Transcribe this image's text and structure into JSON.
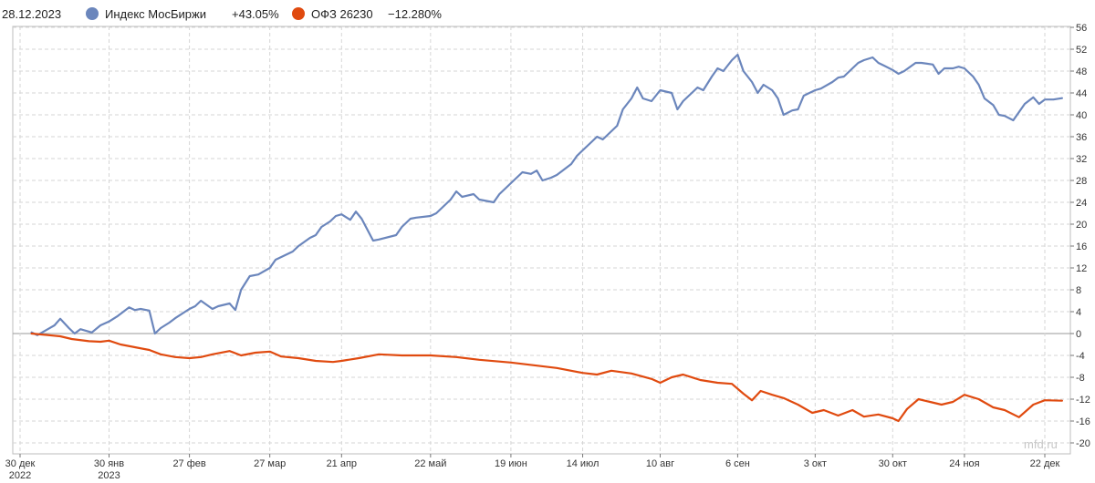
{
  "legend": {
    "date": "28.12.2023",
    "items": [
      {
        "name": "Индекс МосБиржи",
        "value": "+43.05%",
        "color": "#6b86bc"
      },
      {
        "name": "ОФЗ 26230",
        "value": "−12.280%",
        "color": "#e04a0f"
      }
    ]
  },
  "watermark": "mfd.ru",
  "chart_data": {
    "type": "line",
    "x_ticks": [
      {
        "date": "2022-12-30",
        "label": [
          "30 дек",
          "2022"
        ]
      },
      {
        "date": "2023-01-30",
        "label": [
          "30 янв",
          "2023"
        ]
      },
      {
        "date": "2023-02-27",
        "label": [
          "27 фев"
        ]
      },
      {
        "date": "2023-03-27",
        "label": [
          "27 мар"
        ]
      },
      {
        "date": "2023-04-21",
        "label": [
          "21 апр"
        ]
      },
      {
        "date": "2023-05-22",
        "label": [
          "22 май"
        ]
      },
      {
        "date": "2023-06-19",
        "label": [
          "19 июн"
        ]
      },
      {
        "date": "2023-07-14",
        "label": [
          "14 июл"
        ]
      },
      {
        "date": "2023-08-10",
        "label": [
          "10 авг"
        ]
      },
      {
        "date": "2023-09-06",
        "label": [
          "6 сен"
        ]
      },
      {
        "date": "2023-10-03",
        "label": [
          "3 окт"
        ]
      },
      {
        "date": "2023-10-30",
        "label": [
          "30 окт"
        ]
      },
      {
        "date": "2023-11-24",
        "label": [
          "24 ноя"
        ]
      },
      {
        "date": "2023-12-22",
        "label": [
          "22 дек"
        ]
      }
    ],
    "y_ticks": [
      56,
      52,
      48,
      44,
      40,
      36,
      32,
      28,
      24,
      20,
      16,
      12,
      8,
      4,
      0,
      -4,
      -8,
      -12,
      -16,
      -20
    ],
    "ylim": [
      -22,
      58
    ],
    "grid": true,
    "series": [
      {
        "name": "Индекс МосБиржи",
        "color": "#6b86bc",
        "points": [
          [
            "2023-01-03",
            0.2
          ],
          [
            "2023-01-05",
            -0.3
          ],
          [
            "2023-01-09",
            0.9
          ],
          [
            "2023-01-11",
            1.5
          ],
          [
            "2023-01-13",
            2.7
          ],
          [
            "2023-01-16",
            1.0
          ],
          [
            "2023-01-18",
            0.0
          ],
          [
            "2023-01-20",
            0.8
          ],
          [
            "2023-01-24",
            0.2
          ],
          [
            "2023-01-27",
            1.5
          ],
          [
            "2023-01-30",
            2.2
          ],
          [
            "2023-02-02",
            3.2
          ],
          [
            "2023-02-06",
            4.8
          ],
          [
            "2023-02-08",
            4.3
          ],
          [
            "2023-02-10",
            4.5
          ],
          [
            "2023-02-13",
            4.2
          ],
          [
            "2023-02-15",
            0.0
          ],
          [
            "2023-02-17",
            1.0
          ],
          [
            "2023-02-20",
            2.0
          ],
          [
            "2023-02-22",
            2.8
          ],
          [
            "2023-02-27",
            4.5
          ],
          [
            "2023-03-01",
            5.0
          ],
          [
            "2023-03-03",
            6.0
          ],
          [
            "2023-03-07",
            4.5
          ],
          [
            "2023-03-09",
            5.0
          ],
          [
            "2023-03-13",
            5.5
          ],
          [
            "2023-03-15",
            4.3
          ],
          [
            "2023-03-17",
            8.0
          ],
          [
            "2023-03-20",
            10.5
          ],
          [
            "2023-03-23",
            10.8
          ],
          [
            "2023-03-27",
            12.0
          ],
          [
            "2023-03-29",
            13.5
          ],
          [
            "2023-03-31",
            14.0
          ],
          [
            "2023-04-04",
            15.0
          ],
          [
            "2023-04-06",
            16.0
          ],
          [
            "2023-04-10",
            17.5
          ],
          [
            "2023-04-12",
            18.0
          ],
          [
            "2023-04-14",
            19.5
          ],
          [
            "2023-04-17",
            20.5
          ],
          [
            "2023-04-19",
            21.5
          ],
          [
            "2023-04-21",
            21.8
          ],
          [
            "2023-04-24",
            20.8
          ],
          [
            "2023-04-26",
            22.3
          ],
          [
            "2023-04-28",
            21.0
          ],
          [
            "2023-05-02",
            17.0
          ],
          [
            "2023-05-04",
            17.2
          ],
          [
            "2023-05-10",
            18.0
          ],
          [
            "2023-05-12",
            19.5
          ],
          [
            "2023-05-15",
            21.0
          ],
          [
            "2023-05-17",
            21.2
          ],
          [
            "2023-05-22",
            21.5
          ],
          [
            "2023-05-24",
            22.0
          ],
          [
            "2023-05-26",
            23.0
          ],
          [
            "2023-05-29",
            24.5
          ],
          [
            "2023-05-31",
            26.0
          ],
          [
            "2023-06-02",
            25.0
          ],
          [
            "2023-06-06",
            25.5
          ],
          [
            "2023-06-08",
            24.5
          ],
          [
            "2023-06-13",
            24.0
          ],
          [
            "2023-06-15",
            25.5
          ],
          [
            "2023-06-19",
            27.5
          ],
          [
            "2023-06-21",
            28.5
          ],
          [
            "2023-06-23",
            29.5
          ],
          [
            "2023-06-26",
            29.2
          ],
          [
            "2023-06-28",
            29.8
          ],
          [
            "2023-06-30",
            28.0
          ],
          [
            "2023-07-03",
            28.5
          ],
          [
            "2023-07-05",
            29.0
          ],
          [
            "2023-07-07",
            29.8
          ],
          [
            "2023-07-10",
            31.0
          ],
          [
            "2023-07-12",
            32.5
          ],
          [
            "2023-07-14",
            33.5
          ],
          [
            "2023-07-17",
            35.0
          ],
          [
            "2023-07-19",
            36.0
          ],
          [
            "2023-07-21",
            35.5
          ],
          [
            "2023-07-24",
            37.0
          ],
          [
            "2023-07-26",
            38.0
          ],
          [
            "2023-07-28",
            41.0
          ],
          [
            "2023-07-31",
            43.0
          ],
          [
            "2023-08-02",
            45.0
          ],
          [
            "2023-08-04",
            43.0
          ],
          [
            "2023-08-07",
            42.5
          ],
          [
            "2023-08-10",
            44.5
          ],
          [
            "2023-08-14",
            44.0
          ],
          [
            "2023-08-16",
            41.0
          ],
          [
            "2023-08-18",
            42.5
          ],
          [
            "2023-08-21",
            44.0
          ],
          [
            "2023-08-23",
            45.0
          ],
          [
            "2023-08-25",
            44.5
          ],
          [
            "2023-08-28",
            47.0
          ],
          [
            "2023-08-30",
            48.5
          ],
          [
            "2023-09-01",
            48.0
          ],
          [
            "2023-09-04",
            50.0
          ],
          [
            "2023-09-06",
            51.0
          ],
          [
            "2023-09-08",
            48.0
          ],
          [
            "2023-09-11",
            46.0
          ],
          [
            "2023-09-13",
            44.0
          ],
          [
            "2023-09-15",
            45.5
          ],
          [
            "2023-09-18",
            44.5
          ],
          [
            "2023-09-20",
            43.0
          ],
          [
            "2023-09-22",
            40.0
          ],
          [
            "2023-09-25",
            40.8
          ],
          [
            "2023-09-27",
            41.0
          ],
          [
            "2023-09-29",
            43.5
          ],
          [
            "2023-10-03",
            44.5
          ],
          [
            "2023-10-05",
            44.8
          ],
          [
            "2023-10-09",
            46.0
          ],
          [
            "2023-10-11",
            46.8
          ],
          [
            "2023-10-13",
            47.0
          ],
          [
            "2023-10-16",
            48.5
          ],
          [
            "2023-10-18",
            49.5
          ],
          [
            "2023-10-20",
            50.0
          ],
          [
            "2023-10-23",
            50.5
          ],
          [
            "2023-10-25",
            49.5
          ],
          [
            "2023-10-27",
            49.0
          ],
          [
            "2023-10-30",
            48.2
          ],
          [
            "2023-11-01",
            47.5
          ],
          [
            "2023-11-03",
            48.0
          ],
          [
            "2023-11-07",
            49.5
          ],
          [
            "2023-11-09",
            49.5
          ],
          [
            "2023-11-13",
            49.2
          ],
          [
            "2023-11-15",
            47.5
          ],
          [
            "2023-11-17",
            48.5
          ],
          [
            "2023-11-20",
            48.5
          ],
          [
            "2023-11-22",
            48.8
          ],
          [
            "2023-11-24",
            48.5
          ],
          [
            "2023-11-27",
            47.0
          ],
          [
            "2023-11-29",
            45.5
          ],
          [
            "2023-12-01",
            43.0
          ],
          [
            "2023-12-04",
            41.8
          ],
          [
            "2023-12-06",
            40.0
          ],
          [
            "2023-12-08",
            39.8
          ],
          [
            "2023-12-11",
            39.0
          ],
          [
            "2023-12-13",
            40.5
          ],
          [
            "2023-12-15",
            42.0
          ],
          [
            "2023-12-18",
            43.2
          ],
          [
            "2023-12-20",
            42.0
          ],
          [
            "2023-12-22",
            42.8
          ],
          [
            "2023-12-25",
            42.8
          ],
          [
            "2023-12-28",
            43.05
          ]
        ]
      },
      {
        "name": "ОФЗ 26230",
        "color": "#e04a0f",
        "points": [
          [
            "2023-01-03",
            0.0
          ],
          [
            "2023-01-09",
            -0.3
          ],
          [
            "2023-01-13",
            -0.5
          ],
          [
            "2023-01-17",
            -1.0
          ],
          [
            "2023-01-23",
            -1.4
          ],
          [
            "2023-01-27",
            -1.5
          ],
          [
            "2023-01-30",
            -1.3
          ],
          [
            "2023-02-03",
            -2.0
          ],
          [
            "2023-02-08",
            -2.5
          ],
          [
            "2023-02-13",
            -3.0
          ],
          [
            "2023-02-17",
            -3.8
          ],
          [
            "2023-02-22",
            -4.3
          ],
          [
            "2023-02-27",
            -4.5
          ],
          [
            "2023-03-03",
            -4.3
          ],
          [
            "2023-03-07",
            -3.8
          ],
          [
            "2023-03-13",
            -3.2
          ],
          [
            "2023-03-17",
            -4.0
          ],
          [
            "2023-03-22",
            -3.5
          ],
          [
            "2023-03-27",
            -3.3
          ],
          [
            "2023-03-31",
            -4.2
          ],
          [
            "2023-04-06",
            -4.5
          ],
          [
            "2023-04-12",
            -5.0
          ],
          [
            "2023-04-18",
            -5.2
          ],
          [
            "2023-04-21",
            -5.0
          ],
          [
            "2023-04-27",
            -4.5
          ],
          [
            "2023-05-04",
            -3.8
          ],
          [
            "2023-05-12",
            -4.0
          ],
          [
            "2023-05-22",
            -4.0
          ],
          [
            "2023-05-31",
            -4.3
          ],
          [
            "2023-06-08",
            -4.8
          ],
          [
            "2023-06-19",
            -5.3
          ],
          [
            "2023-06-27",
            -5.8
          ],
          [
            "2023-07-05",
            -6.3
          ],
          [
            "2023-07-14",
            -7.2
          ],
          [
            "2023-07-19",
            -7.5
          ],
          [
            "2023-07-24",
            -6.8
          ],
          [
            "2023-07-31",
            -7.3
          ],
          [
            "2023-08-07",
            -8.3
          ],
          [
            "2023-08-10",
            -9.0
          ],
          [
            "2023-08-14",
            -8.0
          ],
          [
            "2023-08-18",
            -7.5
          ],
          [
            "2023-08-24",
            -8.5
          ],
          [
            "2023-08-30",
            -9.0
          ],
          [
            "2023-09-04",
            -9.2
          ],
          [
            "2023-09-08",
            -11.0
          ],
          [
            "2023-09-11",
            -12.2
          ],
          [
            "2023-09-14",
            -10.5
          ],
          [
            "2023-09-18",
            -11.2
          ],
          [
            "2023-09-22",
            -11.8
          ],
          [
            "2023-09-27",
            -13.0
          ],
          [
            "2023-10-02",
            -14.5
          ],
          [
            "2023-10-06",
            -14.0
          ],
          [
            "2023-10-11",
            -15.0
          ],
          [
            "2023-10-16",
            -14.0
          ],
          [
            "2023-10-20",
            -15.2
          ],
          [
            "2023-10-25",
            -14.8
          ],
          [
            "2023-10-30",
            -15.5
          ],
          [
            "2023-11-01",
            -16.0
          ],
          [
            "2023-11-04",
            -13.8
          ],
          [
            "2023-11-08",
            -12.0
          ],
          [
            "2023-11-12",
            -12.5
          ],
          [
            "2023-11-16",
            -13.0
          ],
          [
            "2023-11-20",
            -12.5
          ],
          [
            "2023-11-24",
            -11.2
          ],
          [
            "2023-11-29",
            -12.0
          ],
          [
            "2023-12-04",
            -13.5
          ],
          [
            "2023-12-08",
            -14.0
          ],
          [
            "2023-12-13",
            -15.3
          ],
          [
            "2023-12-18",
            -13.0
          ],
          [
            "2023-12-22",
            -12.2
          ],
          [
            "2023-12-28",
            -12.28
          ]
        ]
      }
    ]
  }
}
